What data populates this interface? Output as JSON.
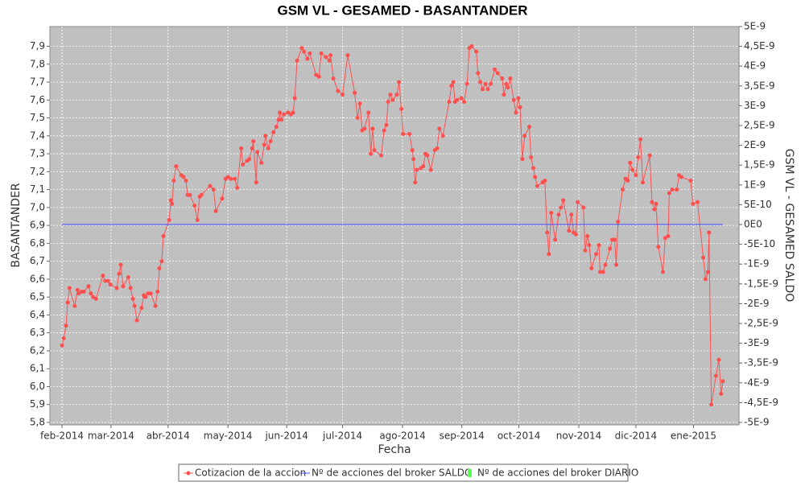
{
  "chart_data": {
    "type": "line",
    "title": "GSM VL - GESAMED - BASANTANDER",
    "x_label": "Fecha",
    "y_label": "BASANTANDER",
    "y2_label": "GSM VL - GESAMED SALDO",
    "xlim": [
      -0.21,
      11.75
    ],
    "xticks": [
      {
        "value": 0,
        "label": "feb-2014"
      },
      {
        "value": 0.85,
        "label": "mar-2014"
      },
      {
        "value": 1.84,
        "label": "abr-2014"
      },
      {
        "value": 2.88,
        "label": "may-2014"
      },
      {
        "value": 3.9,
        "label": "jun-2014"
      },
      {
        "value": 4.87,
        "label": "jul-2014"
      },
      {
        "value": 5.91,
        "label": "ago-2014"
      },
      {
        "value": 6.94,
        "label": "sep-2014"
      },
      {
        "value": 7.93,
        "label": "oct-2014"
      },
      {
        "value": 8.97,
        "label": "nov-2014"
      },
      {
        "value": 9.96,
        "label": "dic-2014"
      },
      {
        "value": 10.96,
        "label": "ene-2015"
      }
    ],
    "ylim": [
      5.8,
      8.01
    ],
    "yticks": [
      {
        "value": 5.8,
        "label": "5,8"
      },
      {
        "value": 5.9,
        "label": "5,9"
      },
      {
        "value": 6.0,
        "label": "6,0"
      },
      {
        "value": 6.1,
        "label": "6,1"
      },
      {
        "value": 6.2,
        "label": "6,2"
      },
      {
        "value": 6.3,
        "label": "6,3"
      },
      {
        "value": 6.4,
        "label": "6,4"
      },
      {
        "value": 6.5,
        "label": "6,5"
      },
      {
        "value": 6.6,
        "label": "6,6"
      },
      {
        "value": 6.7,
        "label": "6,7"
      },
      {
        "value": 6.8,
        "label": "6,8"
      },
      {
        "value": 6.9,
        "label": "6,9"
      },
      {
        "value": 7.0,
        "label": "7,0"
      },
      {
        "value": 7.1,
        "label": "7,1"
      },
      {
        "value": 7.2,
        "label": "7,2"
      },
      {
        "value": 7.3,
        "label": "7,3"
      },
      {
        "value": 7.4,
        "label": "7,4"
      },
      {
        "value": 7.5,
        "label": "7,5"
      },
      {
        "value": 7.6,
        "label": "7,6"
      },
      {
        "value": 7.7,
        "label": "7,7"
      },
      {
        "value": 7.8,
        "label": "7,8"
      },
      {
        "value": 7.9,
        "label": "7,9"
      }
    ],
    "y2lim": [
      -5e-09,
      5e-09
    ],
    "y2ticks": [
      {
        "value": 5e-09,
        "label": "5E-9"
      },
      {
        "value": 4.5e-09,
        "label": "4,5E-9"
      },
      {
        "value": 4e-09,
        "label": "4E-9"
      },
      {
        "value": 3.5e-09,
        "label": "3,5E-9"
      },
      {
        "value": 3e-09,
        "label": "3E-9"
      },
      {
        "value": 2.5e-09,
        "label": "2,5E-9"
      },
      {
        "value": 2e-09,
        "label": "2E-9"
      },
      {
        "value": 1.5e-09,
        "label": "1,5E-9"
      },
      {
        "value": 1e-09,
        "label": "1E-9"
      },
      {
        "value": 5e-10,
        "label": "5E-10"
      },
      {
        "value": 0,
        "label": "0E0"
      },
      {
        "value": -5e-10,
        "label": "-5E-10"
      },
      {
        "value": -1e-09,
        "label": "-1E-9"
      },
      {
        "value": -1.5e-09,
        "label": "-1,5E-9"
      },
      {
        "value": -2e-09,
        "label": "-2E-9"
      },
      {
        "value": -2.5e-09,
        "label": "-2,5E-9"
      },
      {
        "value": -3e-09,
        "label": "-3E-9"
      },
      {
        "value": -3.5e-09,
        "label": "-3,5E-9"
      },
      {
        "value": -4e-09,
        "label": "-4E-9"
      },
      {
        "value": -4.5e-09,
        "label": "-4,5E-9"
      },
      {
        "value": -5e-09,
        "label": "-5E-9"
      }
    ],
    "grid": true,
    "legend": "bottom",
    "series": [
      {
        "name": "Cotizacion de la accion",
        "color": "#ff5050",
        "markers": true,
        "x": [
          0,
          0.03,
          0.07,
          0.1,
          0.13,
          0.22,
          0.27,
          0.29,
          0.34,
          0.38,
          0.46,
          0.5,
          0.54,
          0.59,
          0.71,
          0.75,
          0.8,
          0.84,
          0.95,
          0.99,
          1.02,
          1.06,
          1.15,
          1.19,
          1.23,
          1.26,
          1.3,
          1.38,
          1.42,
          1.45,
          1.49,
          1.54,
          1.62,
          1.66,
          1.69,
          1.73,
          1.76,
          1.86,
          1.89,
          1.91,
          1.94,
          1.98,
          2.07,
          2.11,
          2.15,
          2.18,
          2.22,
          2.3,
          2.35,
          2.39,
          2.42,
          2.57,
          2.63,
          2.67,
          2.78,
          2.84,
          2.88,
          2.93,
          3.0,
          3.04,
          3.11,
          3.14,
          3.21,
          3.25,
          3.3,
          3.32,
          3.37,
          3.39,
          3.46,
          3.51,
          3.53,
          3.58,
          3.62,
          3.67,
          3.72,
          3.76,
          3.78,
          3.81,
          3.85,
          3.92,
          3.97,
          4.01,
          4.04,
          4.08,
          4.16,
          4.2,
          4.26,
          4.3,
          4.41,
          4.46,
          4.5,
          4.58,
          4.64,
          4.66,
          4.71,
          4.79,
          4.87,
          4.96,
          5.08,
          5.13,
          5.17,
          5.21,
          5.25,
          5.32,
          5.36,
          5.39,
          5.42,
          5.54,
          5.59,
          5.63,
          5.66,
          5.7,
          5.74,
          5.81,
          5.85,
          5.89,
          5.92,
          6.03,
          6.08,
          6.1,
          6.13,
          6.16,
          6.23,
          6.27,
          6.31,
          6.34,
          6.4,
          6.47,
          6.51,
          6.55,
          6.61,
          6.72,
          6.76,
          6.79,
          6.82,
          6.86,
          6.93,
          6.98,
          7.03,
          7.07,
          7.11,
          7.19,
          7.22,
          7.26,
          7.3,
          7.35,
          7.39,
          7.44,
          7.51,
          7.56,
          7.64,
          7.67,
          7.71,
          7.74,
          7.78,
          7.84,
          7.88,
          7.92,
          7.95,
          7.99,
          8.03,
          8.11,
          8.14,
          8.18,
          8.21,
          8.25,
          8.34,
          8.38,
          8.42,
          8.45,
          8.49,
          8.56,
          8.62,
          8.66,
          8.7,
          8.8,
          8.84,
          8.88,
          8.92,
          8.95,
          9.05,
          9.08,
          9.12,
          9.15,
          9.19,
          9.27,
          9.32,
          9.34,
          9.39,
          9.43,
          9.51,
          9.55,
          9.59,
          9.62,
          9.65,
          9.73,
          9.78,
          9.82,
          9.86,
          9.9,
          9.96,
          10.0,
          10.04,
          10.08,
          10.2,
          10.24,
          10.28,
          10.31,
          10.35,
          10.43,
          10.47,
          10.52,
          10.54,
          10.59,
          10.67,
          10.71,
          10.75,
          10.91,
          10.95,
          11.03,
          11.13,
          11.17,
          11.21,
          11.23,
          11.27,
          11.35,
          11.4,
          11.44,
          11.47
        ],
        "values": [
          6.23,
          6.27,
          6.34,
          6.47,
          6.55,
          6.45,
          6.54,
          6.52,
          6.53,
          6.53,
          6.56,
          6.52,
          6.5,
          6.49,
          6.62,
          6.59,
          6.59,
          6.57,
          6.55,
          6.63,
          6.68,
          6.56,
          6.61,
          6.55,
          6.49,
          6.45,
          6.37,
          6.44,
          6.51,
          6.5,
          6.52,
          6.52,
          6.45,
          6.53,
          6.66,
          6.7,
          6.84,
          6.93,
          7.04,
          7.02,
          7.15,
          7.23,
          7.18,
          7.17,
          7.15,
          7.07,
          7.07,
          7.01,
          6.93,
          7.06,
          7.07,
          7.12,
          7.1,
          6.98,
          7.05,
          7.16,
          7.17,
          7.16,
          7.16,
          7.11,
          7.33,
          7.24,
          7.26,
          7.27,
          7.33,
          7.37,
          7.14,
          7.31,
          7.25,
          7.35,
          7.4,
          7.33,
          7.37,
          7.42,
          7.45,
          7.49,
          7.53,
          7.49,
          7.52,
          7.53,
          7.52,
          7.53,
          7.61,
          7.82,
          7.89,
          7.87,
          7.83,
          7.86,
          7.74,
          7.73,
          7.86,
          7.84,
          7.82,
          7.85,
          7.72,
          7.65,
          7.63,
          7.85,
          7.64,
          7.5,
          7.58,
          7.43,
          7.44,
          7.53,
          7.3,
          7.44,
          7.32,
          7.29,
          7.43,
          7.46,
          7.59,
          7.63,
          7.6,
          7.63,
          7.7,
          7.55,
          7.41,
          7.41,
          7.32,
          7.27,
          7.14,
          7.21,
          7.22,
          7.23,
          7.3,
          7.29,
          7.21,
          7.32,
          7.33,
          7.44,
          7.4,
          7.59,
          7.68,
          7.7,
          7.59,
          7.6,
          7.61,
          7.59,
          7.69,
          7.89,
          7.9,
          7.87,
          7.75,
          7.7,
          7.66,
          7.69,
          7.66,
          7.69,
          7.77,
          7.75,
          7.72,
          7.63,
          7.69,
          7.67,
          7.72,
          7.6,
          7.53,
          7.61,
          7.56,
          7.27,
          7.4,
          7.45,
          7.28,
          7.22,
          7.17,
          7.12,
          7.14,
          7.15,
          6.86,
          6.74,
          6.97,
          6.82,
          6.96,
          7.0,
          7.04,
          6.87,
          6.96,
          6.86,
          6.85,
          7.03,
          7.0,
          6.76,
          6.84,
          6.79,
          6.66,
          6.74,
          6.79,
          6.64,
          6.64,
          6.68,
          6.77,
          6.82,
          6.82,
          6.68,
          6.92,
          7.1,
          7.16,
          7.15,
          7.25,
          7.21,
          7.18,
          7.28,
          7.38,
          7.14,
          7.29,
          7.03,
          6.99,
          7.02,
          6.78,
          6.64,
          6.83,
          6.84,
          7.08,
          7.1,
          7.1,
          7.18,
          7.17,
          7.15,
          7.02,
          7.03,
          6.72,
          6.6,
          6.64,
          6.86,
          5.9,
          6.06,
          6.15,
          5.96,
          6.03
        ]
      },
      {
        "name": "Nº de acciones del broker SALDO",
        "color": "#4444ff",
        "axis": "y2",
        "markers": false,
        "x": [
          0,
          11.47
        ],
        "values": [
          0,
          0
        ]
      },
      {
        "name": "Nº de acciones del broker DIARIO",
        "color": "#55ff55",
        "axis": "y2",
        "markers": false,
        "x": [],
        "values": []
      }
    ]
  }
}
